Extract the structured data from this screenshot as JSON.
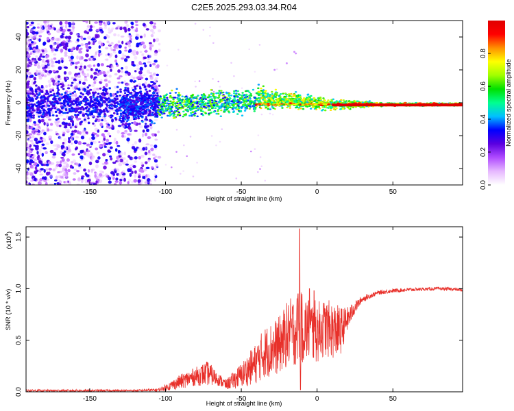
{
  "title": "C2E5.2025.293.03.34.R04",
  "chart_data": [
    {
      "type": "heatmap",
      "xlabel": "Height of straight line (km)",
      "ylabel": "Frequency (Hz)",
      "xlim": [
        -192,
        96
      ],
      "ylim": [
        -50,
        50
      ],
      "xticks": [
        -150,
        -100,
        -50,
        0,
        50
      ],
      "yticks": [
        -40,
        -20,
        0,
        20,
        40
      ],
      "colorbar": {
        "label": "Normalized spectral amplitude",
        "range": [
          0,
          1
        ],
        "ticks": [
          "0.0",
          "0.2",
          "0.4",
          "0.6",
          "0.8"
        ]
      },
      "colorbar_stops": [
        "#ffffff",
        "#e6b8ff",
        "#b04cff",
        "#5a00e0",
        "#0000ff",
        "#00c0ff",
        "#00ff90",
        "#00e000",
        "#a0ff00",
        "#ffff00",
        "#ff9000",
        "#ff0000",
        "#e00000"
      ]
    },
    {
      "type": "line",
      "xlabel": "Height of straight line (km)",
      "ylabel": "SNR (10 * v/v)",
      "scale_label": "(x10",
      "scale_exp": "4",
      "scale_close": ")",
      "xlim": [
        -192,
        96
      ],
      "ylim": [
        0,
        1.6
      ],
      "xticks": [
        -150,
        -100,
        -50,
        0,
        50
      ],
      "yticks": [
        "0.0",
        "0.5",
        "1.0",
        "1.5"
      ],
      "line_color": "#e8302a",
      "envelope": {
        "x": [
          -192,
          -150,
          -120,
          -105,
          -100,
          -90,
          -80,
          -72,
          -65,
          -60,
          -50,
          -40,
          -35,
          -25,
          -20,
          -15,
          -12,
          -10,
          -5,
          0,
          5,
          10,
          15,
          20,
          25,
          30,
          40,
          50,
          60,
          70,
          80,
          90,
          96
        ],
        "mid": [
          0.012,
          0.012,
          0.012,
          0.018,
          0.04,
          0.1,
          0.15,
          0.18,
          0.12,
          0.07,
          0.16,
          0.28,
          0.38,
          0.45,
          0.55,
          0.6,
          0.6,
          0.62,
          0.6,
          0.58,
          0.62,
          0.6,
          0.58,
          0.7,
          0.82,
          0.9,
          0.96,
          0.98,
          0.99,
          0.995,
          1.0,
          0.995,
          0.985
        ],
        "amp": [
          0.01,
          0.01,
          0.01,
          0.015,
          0.03,
          0.07,
          0.09,
          0.12,
          0.06,
          0.05,
          0.12,
          0.2,
          0.25,
          0.28,
          0.32,
          0.35,
          0.35,
          0.35,
          0.32,
          0.3,
          0.28,
          0.28,
          0.25,
          0.12,
          0.06,
          0.03,
          0.02,
          0.02,
          0.018,
          0.015,
          0.015,
          0.015,
          0.015
        ]
      },
      "spikes": [
        {
          "x": -11.5,
          "y": 1.58
        },
        {
          "x": -12.5,
          "y": 0.95
        },
        {
          "x": -11.0,
          "y": 0.02
        },
        {
          "x": -5,
          "y": 1.0
        },
        {
          "x": -2,
          "y": 0.98
        }
      ]
    }
  ]
}
